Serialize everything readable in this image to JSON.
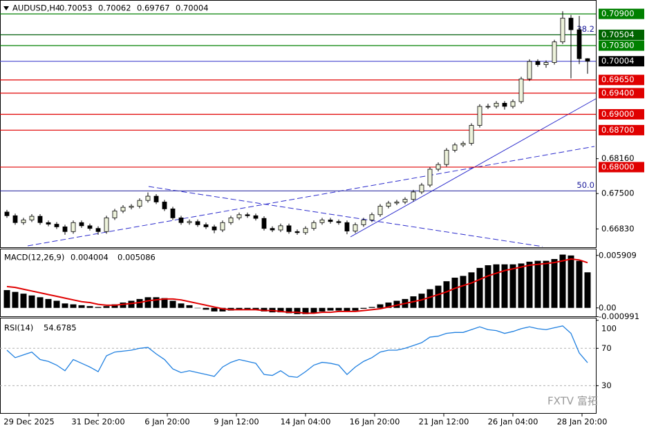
{
  "header": {
    "symbol": "AUDUSD,H4",
    "open": 0.70053,
    "high": 0.70062,
    "low": 0.69767,
    "close": 0.70004
  },
  "watermark": "FXTV 富拓",
  "x_labels": [
    "29 Dec 2025",
    "31 Dec 20:00",
    "6 Jan 20:00",
    "9 Jan 12:00",
    "14 Jan 04:00",
    "16 Jan 20:00",
    "21 Jan 12:00",
    "26 Jan 04:00",
    "28 Jan 20:00"
  ],
  "chart_data": [
    {
      "type": "candlestick",
      "ylim": [
        0.6647,
        0.7115
      ],
      "bull_color": "#eef3dc",
      "bear_color": "#000000",
      "open": [
        0.6715,
        0.6708,
        0.6695,
        0.67,
        0.6707,
        0.6695,
        0.6692,
        0.6687,
        0.6678,
        0.6695,
        0.6689,
        0.6684,
        0.6678,
        0.6704,
        0.6717,
        0.6724,
        0.6726,
        0.6737,
        0.6745,
        0.6734,
        0.6721,
        0.6704,
        0.6695,
        0.6697,
        0.6691,
        0.6687,
        0.6681,
        0.6695,
        0.6704,
        0.671,
        0.6708,
        0.6703,
        0.6684,
        0.6681,
        0.6689,
        0.6678,
        0.6676,
        0.6684,
        0.6695,
        0.67,
        0.6697,
        0.6695,
        0.6679,
        0.6691,
        0.67,
        0.671,
        0.6726,
        0.6732,
        0.6734,
        0.6739,
        0.6753,
        0.6766,
        0.6796,
        0.6805,
        0.6832,
        0.6842,
        0.6845,
        0.6879,
        0.6915,
        0.6915,
        0.6921,
        0.6915,
        0.6924,
        0.6967,
        0.7,
        0.6994,
        0.6998,
        0.7037,
        0.7082,
        0.706,
        0.70053
      ],
      "high": [
        0.6719,
        0.6712,
        0.6704,
        0.6711,
        0.6711,
        0.6699,
        0.6696,
        0.6691,
        0.6699,
        0.6699,
        0.6693,
        0.6688,
        0.6708,
        0.6721,
        0.6728,
        0.673,
        0.6741,
        0.6752,
        0.6749,
        0.6738,
        0.6725,
        0.6708,
        0.6701,
        0.6701,
        0.6695,
        0.6691,
        0.6699,
        0.6708,
        0.6714,
        0.6714,
        0.6712,
        0.6707,
        0.6688,
        0.6693,
        0.6693,
        0.6682,
        0.6688,
        0.6699,
        0.6704,
        0.6704,
        0.6701,
        0.6699,
        0.6695,
        0.6704,
        0.6714,
        0.673,
        0.6736,
        0.6738,
        0.6743,
        0.6757,
        0.677,
        0.68,
        0.6809,
        0.6836,
        0.6846,
        0.6849,
        0.6883,
        0.6919,
        0.692,
        0.6925,
        0.6925,
        0.6928,
        0.6971,
        0.7004,
        0.7004,
        0.7002,
        0.7041,
        0.7095,
        0.7088,
        0.7086,
        0.70062
      ],
      "low": [
        0.6704,
        0.6691,
        0.6691,
        0.6696,
        0.6691,
        0.6688,
        0.6683,
        0.6672,
        0.6674,
        0.6685,
        0.668,
        0.6672,
        0.6674,
        0.67,
        0.6713,
        0.672,
        0.6722,
        0.6733,
        0.673,
        0.6717,
        0.67,
        0.6691,
        0.6691,
        0.6687,
        0.6683,
        0.6675,
        0.6677,
        0.6691,
        0.67,
        0.6704,
        0.6699,
        0.668,
        0.6677,
        0.6677,
        0.6674,
        0.6672,
        0.6672,
        0.668,
        0.6691,
        0.6693,
        0.6691,
        0.6673,
        0.6675,
        0.6687,
        0.6696,
        0.6706,
        0.6722,
        0.6728,
        0.673,
        0.6735,
        0.6749,
        0.6762,
        0.6792,
        0.6801,
        0.6828,
        0.6838,
        0.6841,
        0.6875,
        0.691,
        0.6911,
        0.6909,
        0.6911,
        0.692,
        0.6963,
        0.699,
        0.6988,
        0.6994,
        0.7033,
        0.6968,
        0.6995,
        0.69767
      ],
      "close": [
        0.6708,
        0.6695,
        0.67,
        0.6707,
        0.6695,
        0.6692,
        0.6687,
        0.6678,
        0.6695,
        0.6689,
        0.6684,
        0.6678,
        0.6704,
        0.6717,
        0.6724,
        0.6726,
        0.6737,
        0.6745,
        0.6734,
        0.6721,
        0.6704,
        0.6695,
        0.6697,
        0.6691,
        0.6687,
        0.6681,
        0.6695,
        0.6704,
        0.671,
        0.6708,
        0.6703,
        0.6684,
        0.6681,
        0.6689,
        0.6678,
        0.6676,
        0.6684,
        0.6695,
        0.67,
        0.6697,
        0.6695,
        0.6679,
        0.6691,
        0.67,
        0.671,
        0.6726,
        0.6732,
        0.6734,
        0.6739,
        0.6753,
        0.6766,
        0.6796,
        0.6805,
        0.6832,
        0.6842,
        0.6845,
        0.6879,
        0.6915,
        0.6915,
        0.6921,
        0.6915,
        0.6924,
        0.6967,
        0.7,
        0.6994,
        0.6998,
        0.7037,
        0.7082,
        0.706,
        0.70053,
        0.70004
      ],
      "yticks": [
        {
          "value": 0.6816,
          "label": "0.68160"
        },
        {
          "value": 0.675,
          "label": "0.67500"
        },
        {
          "value": 0.6683,
          "label": "0.66830"
        }
      ],
      "fib": [
        {
          "value": 0.70504,
          "label": "38.2"
        },
        {
          "value": 0.6755,
          "label": "50.0"
        }
      ],
      "fib_color": "#1a1a9a",
      "levels": [
        {
          "value": 0.709,
          "label": "0.70900",
          "color": "#008000"
        },
        {
          "value": 0.70504,
          "label": "0.70504",
          "color": "#006400"
        },
        {
          "value": 0.703,
          "label": "0.70300",
          "color": "#008000"
        },
        {
          "value": 0.70004,
          "label": "0.70004",
          "color": "#000000",
          "line_color": "#4a4ad0"
        },
        {
          "value": 0.6965,
          "label": "0.69650",
          "color": "#e00000"
        },
        {
          "value": 0.694,
          "label": "0.69400",
          "color": "#e00000"
        },
        {
          "value": 0.69,
          "label": "0.69000",
          "color": "#e00000"
        },
        {
          "value": 0.687,
          "label": "0.68700",
          "color": "#e00000"
        },
        {
          "value": 0.68,
          "label": "0.68000",
          "color": "#e00000"
        }
      ]
    },
    {
      "type": "macd",
      "name": "MACD(12,26,9)",
      "ylim": [
        -0.00103,
        0.00659
      ],
      "color": "#000000",
      "signal_color": "#e00000",
      "yticks": [
        0.005909,
        {
          "value": 0,
          "label": "0.00"
        },
        {
          "value": -0.000991,
          "label": "-0.000991"
        }
      ],
      "values": [
        0.002,
        0.0018,
        0.0016,
        0.0014,
        0.0012,
        0.001,
        0.0008,
        0.0005,
        0.0004,
        0.0003,
        0.0002,
        0.0001,
        0.0002,
        0.0004,
        0.0006,
        0.0008,
        0.001,
        0.0012,
        0.0012,
        0.0011,
        0.0008,
        0.0005,
        0.0003,
        0.0,
        -0.0002,
        -0.0004,
        -0.0004,
        -0.0003,
        -0.0002,
        -0.0002,
        -0.0002,
        -0.0004,
        -0.0005,
        -0.0005,
        -0.0006,
        -0.0007,
        -0.0007,
        -0.0006,
        -0.0004,
        -0.0003,
        -0.0003,
        -0.0004,
        -0.0003,
        -0.0001,
        0.0001,
        0.0004,
        0.0006,
        0.0008,
        0.001,
        0.0013,
        0.0016,
        0.0021,
        0.0025,
        0.003,
        0.0034,
        0.0036,
        0.004,
        0.0045,
        0.0048,
        0.0049,
        0.0049,
        0.0049,
        0.005,
        0.0052,
        0.0053,
        0.0053,
        0.0055,
        0.006,
        0.0059,
        0.0053,
        0.004004
      ],
      "signal": [
        0.0024,
        0.0023,
        0.0021,
        0.0019,
        0.0017,
        0.0015,
        0.0013,
        0.0011,
        0.0009,
        0.0007,
        0.0006,
        0.0004,
        0.0003,
        0.0003,
        0.0004,
        0.0005,
        0.0006,
        0.0008,
        0.0009,
        0.001,
        0.001,
        0.0009,
        0.0007,
        0.0005,
        0.0003,
        0.0001,
        -0.0001,
        -0.0002,
        -0.0002,
        -0.0002,
        -0.0002,
        -0.0003,
        -0.0003,
        -0.0004,
        -0.0005,
        -0.0005,
        -0.0006,
        -0.0006,
        -0.0005,
        -0.0005,
        -0.0004,
        -0.0004,
        -0.0004,
        -0.0003,
        -0.0002,
        -0.0001,
        0.0001,
        0.0003,
        0.0005,
        0.0007,
        0.0009,
        0.0012,
        0.0015,
        0.0018,
        0.0022,
        0.0025,
        0.0028,
        0.0032,
        0.0036,
        0.0039,
        0.0042,
        0.0044,
        0.0046,
        0.0048,
        0.0049,
        0.005,
        0.0051,
        0.0053,
        0.0055,
        0.0054,
        0.005086
      ]
    },
    {
      "type": "rsi",
      "name": "RSI(14)",
      "ylim": [
        0,
        102
      ],
      "color": "#1e7fe0",
      "yticks": [
        100,
        70,
        30
      ],
      "levels": [
        70,
        30
      ],
      "values": [
        68,
        60,
        63,
        66,
        58,
        56,
        52,
        46,
        58,
        54,
        50,
        45,
        62,
        66,
        67,
        68,
        70,
        71,
        64,
        58,
        48,
        44,
        46,
        44,
        42,
        40,
        50,
        55,
        58,
        56,
        54,
        42,
        41,
        46,
        40,
        39,
        45,
        52,
        55,
        54,
        52,
        42,
        50,
        56,
        60,
        66,
        68,
        68,
        70,
        73,
        76,
        82,
        83,
        86,
        87,
        87,
        90,
        93,
        90,
        89,
        86,
        88,
        91,
        93,
        91,
        90,
        92,
        94,
        86,
        65,
        54.6785
      ]
    }
  ]
}
